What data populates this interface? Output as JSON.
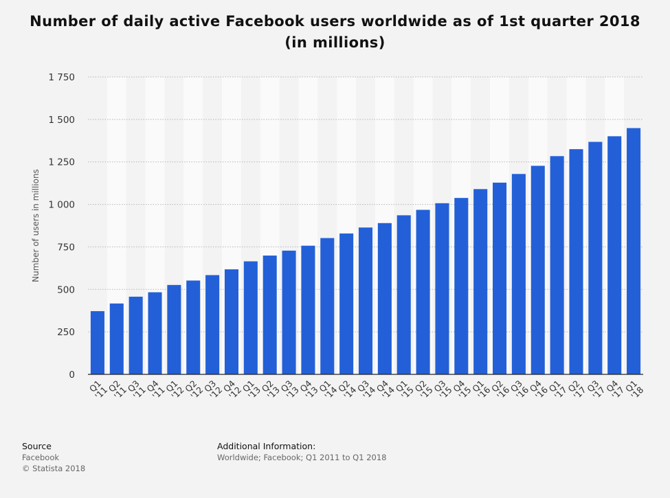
{
  "chart_data": {
    "type": "bar",
    "title": "Number of daily active Facebook users worldwide as of 1st quarter 2018 (in millions)",
    "ylabel": "Number of users in millions",
    "xlabel": "",
    "ylim": [
      0,
      1750
    ],
    "yticks": [
      0,
      250,
      500,
      750,
      1000,
      1250,
      1500,
      1750
    ],
    "ytick_labels": [
      "0",
      "250",
      "500",
      "750",
      "1 000",
      "1 250",
      "1 500",
      "1 750"
    ],
    "grid": true,
    "color": "#2360d8",
    "categories": [
      "Q1 '11",
      "Q2 '11",
      "Q3 '11",
      "Q4 '11",
      "Q1 '12",
      "Q2 '12",
      "Q3 '12",
      "Q4 '12",
      "Q1 '13",
      "Q2 '13",
      "Q3 '13",
      "Q4 '13",
      "Q1 '14",
      "Q2 '14",
      "Q3 '14",
      "Q4 '14",
      "Q1 '15",
      "Q2 '15",
      "Q3 '15",
      "Q4 '15",
      "Q1 '16",
      "Q2 '16",
      "Q3 '16",
      "Q4 '16",
      "Q1 '17",
      "Q2 '17",
      "Q3 '17",
      "Q4 '17",
      "Q1 '18"
    ],
    "values": [
      372,
      417,
      457,
      483,
      526,
      552,
      584,
      618,
      665,
      699,
      728,
      757,
      802,
      829,
      864,
      890,
      936,
      968,
      1007,
      1038,
      1090,
      1128,
      1179,
      1227,
      1284,
      1325,
      1368,
      1401,
      1449
    ]
  },
  "footer": {
    "source_heading": "Source",
    "source_name": "Facebook",
    "copyright": "© Statista 2018",
    "additional_heading": "Additional Information:",
    "additional_text": "Worldwide; Facebook; Q1 2011 to Q1 2018"
  }
}
